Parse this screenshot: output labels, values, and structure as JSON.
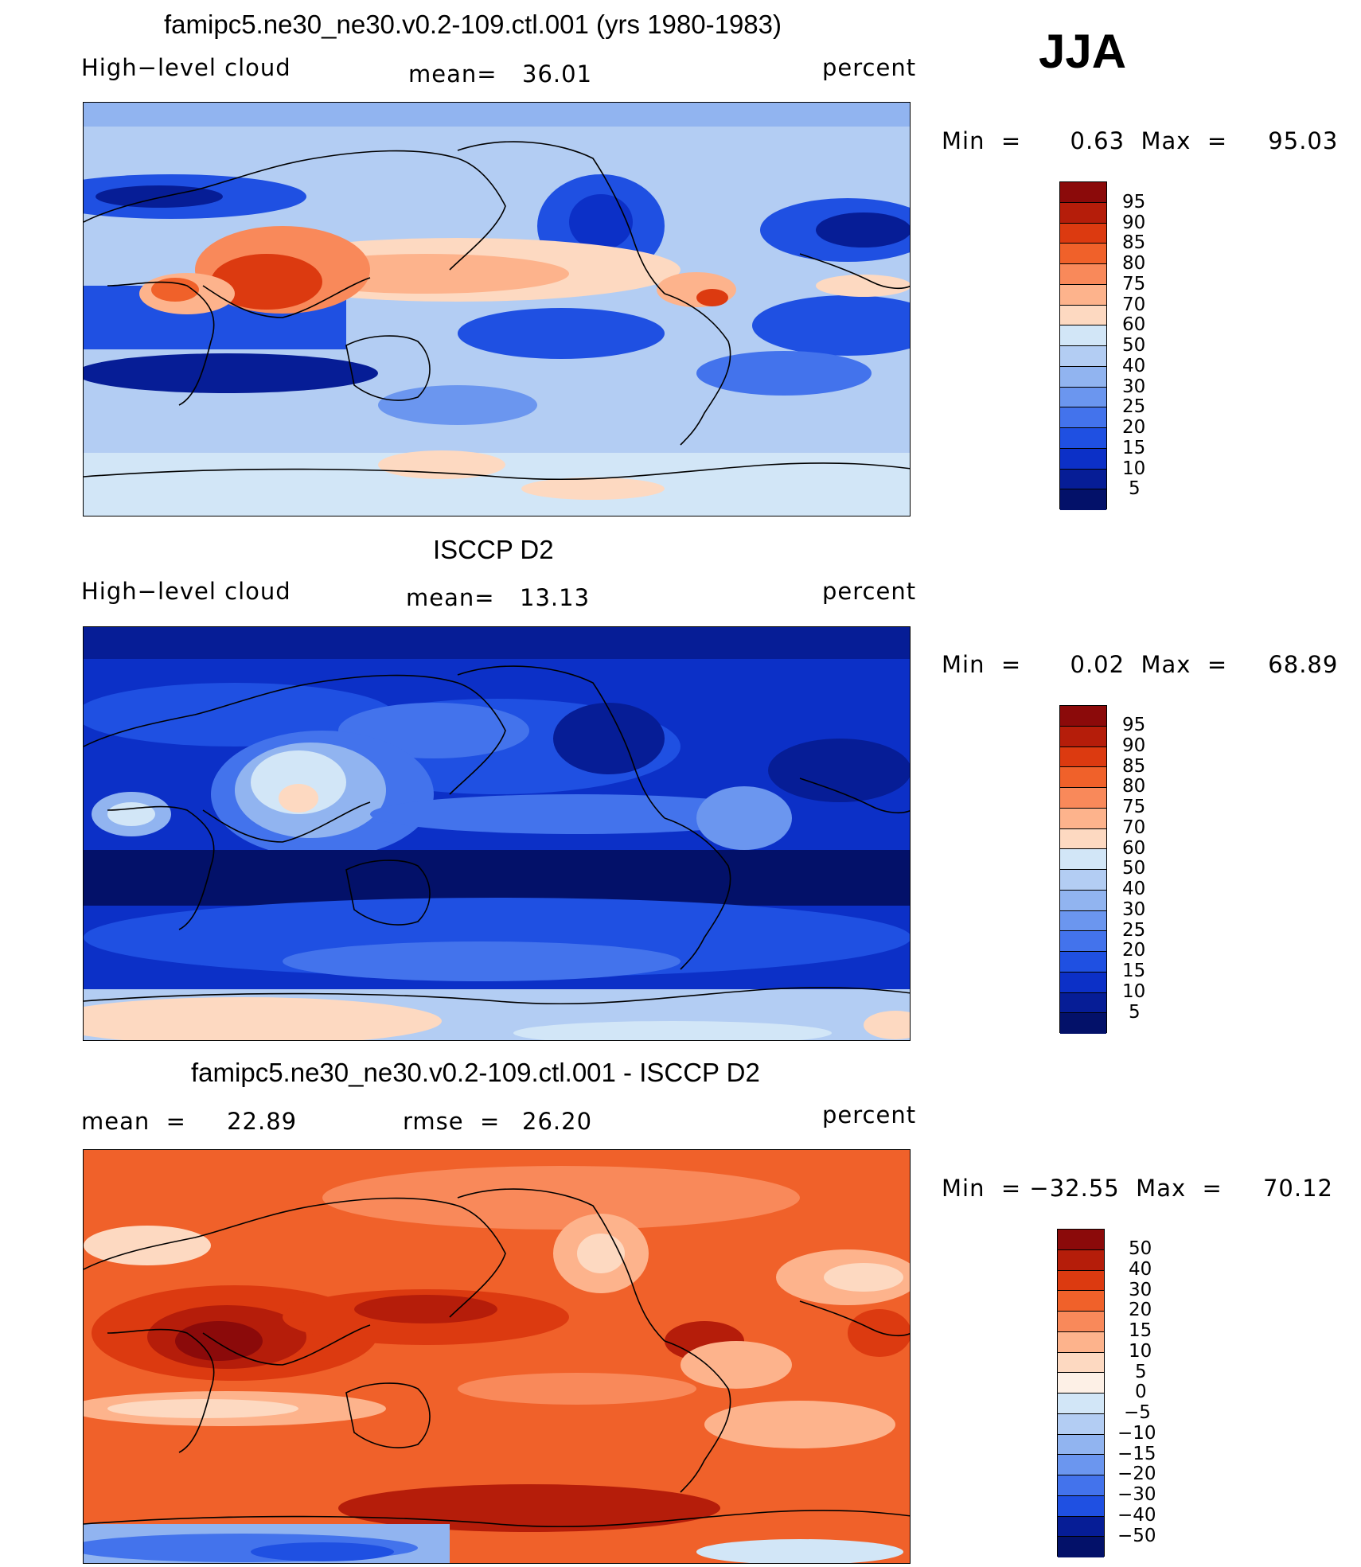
{
  "header": {
    "season": "JJA"
  },
  "panels": [
    {
      "id": "model",
      "title": "famipc5.ne30_ne30.v0.2-109.ctl.001 (yrs 1980-1983)",
      "left_label": "High−level cloud",
      "stat_label": "mean=",
      "stat_value": "36.01",
      "units": "percent",
      "range_label": "Min  =      0.63  Max  =     95.03",
      "colorbar": {
        "levels": [
          "95",
          "90",
          "85",
          "80",
          "75",
          "70",
          "60",
          "50",
          "40",
          "30",
          "25",
          "20",
          "15",
          "10",
          "5"
        ],
        "colors": [
          "#8b0a0a",
          "#b51d0a",
          "#dc3a10",
          "#f0612a",
          "#f9895a",
          "#fdb38c",
          "#fdd9c1",
          "#d2e6f7",
          "#b3cdf3",
          "#91b4f0",
          "#6b96ef",
          "#4373ec",
          "#1f50e2",
          "#0c30c7",
          "#061d96",
          "#031169"
        ]
      }
    },
    {
      "id": "obs",
      "title": "ISCCP D2",
      "left_label": "High−level cloud",
      "stat_label": "mean=",
      "stat_value": "13.13",
      "units": "percent",
      "range_label": "Min  =      0.02  Max  =     68.89",
      "colorbar": {
        "levels": [
          "95",
          "90",
          "85",
          "80",
          "75",
          "70",
          "60",
          "50",
          "40",
          "30",
          "25",
          "20",
          "15",
          "10",
          "5"
        ],
        "colors": [
          "#8b0a0a",
          "#b51d0a",
          "#dc3a10",
          "#f0612a",
          "#f9895a",
          "#fdb38c",
          "#fdd9c1",
          "#d2e6f7",
          "#b3cdf3",
          "#91b4f0",
          "#6b96ef",
          "#4373ec",
          "#1f50e2",
          "#0c30c7",
          "#061d96",
          "#031169"
        ]
      }
    },
    {
      "id": "diff",
      "title": "famipc5.ne30_ne30.v0.2-109.ctl.001 - ISCCP D2",
      "left_label": "mean  =     22.89",
      "stat_label": "rmse  =",
      "stat_value": "26.20",
      "units": "percent",
      "range_label": "Min  = −32.55  Max  =     70.12",
      "colorbar": {
        "levels": [
          "50",
          "40",
          "30",
          "20",
          "15",
          "10",
          "5",
          "0",
          "−5",
          "−10",
          "−15",
          "−20",
          "−30",
          "−40",
          "−50"
        ],
        "colors": [
          "#8b0a0a",
          "#b51d0a",
          "#dc3a10",
          "#f0612a",
          "#f9895a",
          "#fdb38c",
          "#fdd9c1",
          "#fdf0e6",
          "#d2e6f7",
          "#b3cdf3",
          "#91b4f0",
          "#6b96ef",
          "#4373ec",
          "#1f50e2",
          "#061d96",
          "#031169"
        ]
      }
    }
  ],
  "colors": {
    "model_background": "#b3cdf3",
    "obs_background": "#0c30c7",
    "diff_background": "#f0612a",
    "coastline": "#000000"
  }
}
